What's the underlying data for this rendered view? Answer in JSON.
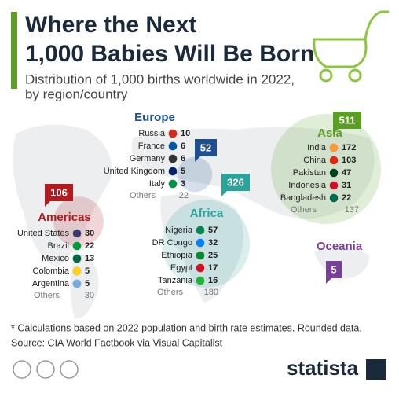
{
  "header": {
    "title_line1": "Where the Next",
    "title_line2": "1,000 Babies Will Be Born",
    "subtitle_line1": "Distribution of 1,000 births worldwide in 2022,",
    "subtitle_line2": "by region/country"
  },
  "regions": [
    {
      "name": "Europe",
      "total": 52,
      "color": "#1d4f91",
      "countries": [
        {
          "name": "Russia",
          "value": 10
        },
        {
          "name": "France",
          "value": 6
        },
        {
          "name": "Germany",
          "value": 6
        },
        {
          "name": "United Kingdom",
          "value": 5
        },
        {
          "name": "Italy",
          "value": 3
        }
      ],
      "others_label": "Others",
      "others": 22
    },
    {
      "name": "Americas",
      "total": 106,
      "color": "#b11b20",
      "countries": [
        {
          "name": "United States",
          "value": 30
        },
        {
          "name": "Brazil",
          "value": 22
        },
        {
          "name": "Mexico",
          "value": 13
        },
        {
          "name": "Colombia",
          "value": 5
        },
        {
          "name": "Argentina",
          "value": 5
        }
      ],
      "others_label": "Others",
      "others": 30
    },
    {
      "name": "Africa",
      "total": 326,
      "color": "#2aa39a",
      "countries": [
        {
          "name": "Nigeria",
          "value": 57
        },
        {
          "name": "DR Congo",
          "value": 32
        },
        {
          "name": "Ethiopia",
          "value": 25
        },
        {
          "name": "Egypt",
          "value": 17
        },
        {
          "name": "Tanzania",
          "value": 16
        }
      ],
      "others_label": "Others",
      "others": 180
    },
    {
      "name": "Asia",
      "total": 511,
      "color": "#5a9e23",
      "countries": [
        {
          "name": "India",
          "value": 172
        },
        {
          "name": "China",
          "value": 103
        },
        {
          "name": "Pakistan",
          "value": 47
        },
        {
          "name": "Indonesia",
          "value": 31
        },
        {
          "name": "Bangladesh",
          "value": 22
        }
      ],
      "others_label": "Others",
      "others": 137
    },
    {
      "name": "Oceania",
      "total": 5,
      "color": "#7a3e9d"
    }
  ],
  "footer": {
    "note": "* Calculations based on 2022 population and birth rate estimates. Rounded data.",
    "source": "Source: CIA World Factbook via Visual Capitalist",
    "brand": "statista"
  }
}
